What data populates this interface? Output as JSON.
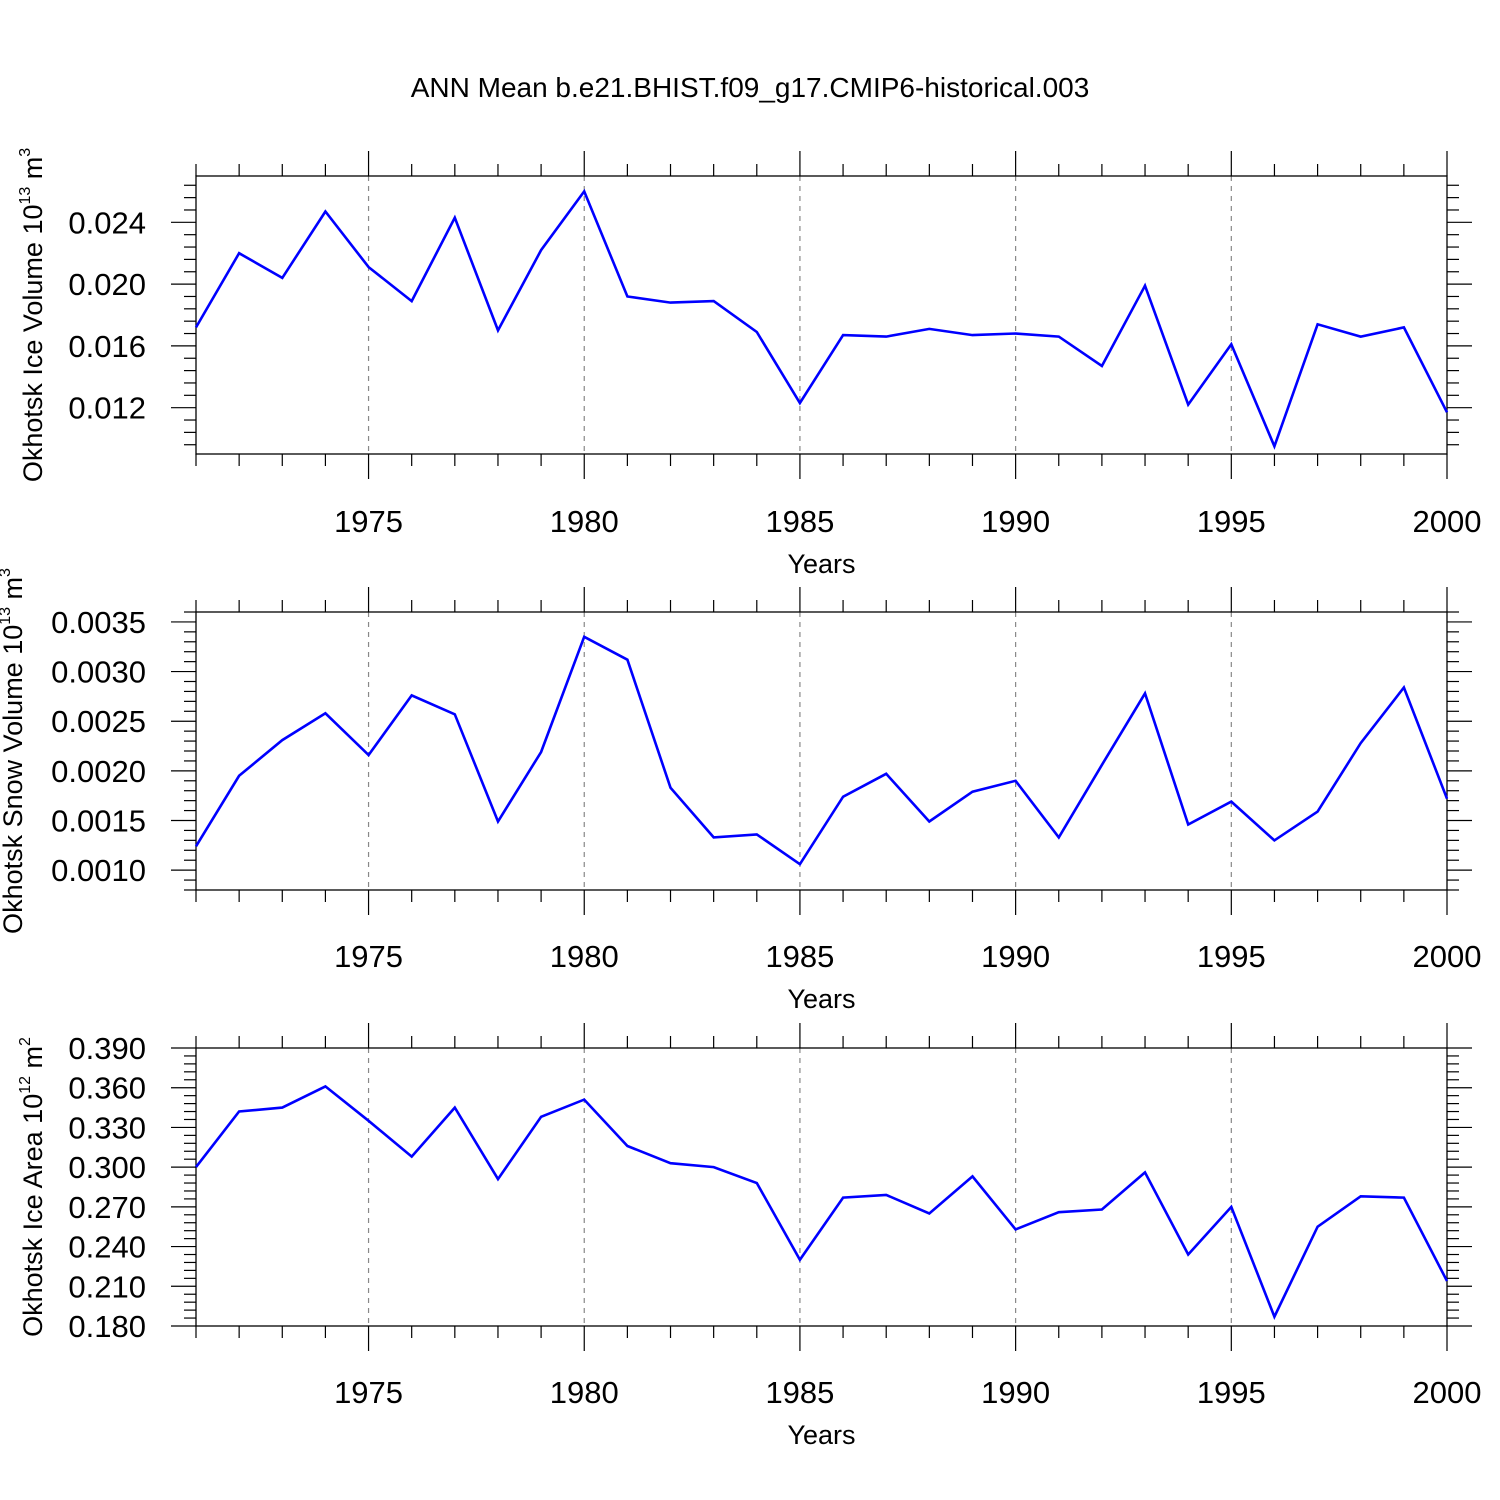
{
  "title": "ANN Mean b.e21.BHIST.f09_g17.CMIP6-historical.003",
  "chart_data": [
    {
      "type": "line",
      "ylabel": "Okhotsk Ice Volume 10",
      "ylabel_exp": "13",
      "ylabel_unit": " m",
      "ylabel_unit_exp": "3",
      "xlabel": "Years",
      "xlim": [
        1971,
        2000
      ],
      "ylim": [
        0.009,
        0.027
      ],
      "yticks": [
        0.012,
        0.016,
        0.02,
        0.024
      ],
      "ytick_labels": [
        "0.012",
        "0.016",
        "0.020",
        "0.024"
      ],
      "xticks": [
        1975,
        1980,
        1985,
        1990,
        1995,
        2000
      ],
      "xtick_labels": [
        "1975",
        "1980",
        "1985",
        "1990",
        "1995",
        "2000"
      ],
      "color": "#0000ff",
      "x": [
        1971,
        1972,
        1973,
        1974,
        1975,
        1976,
        1977,
        1978,
        1979,
        1980,
        1981,
        1982,
        1983,
        1984,
        1985,
        1986,
        1987,
        1988,
        1989,
        1990,
        1991,
        1992,
        1993,
        1994,
        1995,
        1996,
        1997,
        1998,
        1999,
        2000
      ],
      "values": [
        0.0172,
        0.022,
        0.0204,
        0.0247,
        0.0211,
        0.0189,
        0.0243,
        0.017,
        0.0222,
        0.026,
        0.0192,
        0.0188,
        0.0189,
        0.0169,
        0.0123,
        0.0167,
        0.0166,
        0.0171,
        0.0167,
        0.0168,
        0.0166,
        0.0147,
        0.0199,
        0.0122,
        0.0161,
        0.0095,
        0.0174,
        0.0166,
        0.0172,
        0.0117
      ]
    },
    {
      "type": "line",
      "ylabel": "Okhotsk Snow Volume 10",
      "ylabel_exp": "13",
      "ylabel_unit": " m",
      "ylabel_unit_exp": "3",
      "xlabel": "Years",
      "xlim": [
        1971,
        2000
      ],
      "ylim": [
        0.0008,
        0.0036
      ],
      "yticks": [
        0.001,
        0.0015,
        0.002,
        0.0025,
        0.003,
        0.0035
      ],
      "ytick_labels": [
        "0.0010",
        "0.0015",
        "0.0020",
        "0.0025",
        "0.0030",
        "0.0035"
      ],
      "xticks": [
        1975,
        1980,
        1985,
        1990,
        1995,
        2000
      ],
      "xtick_labels": [
        "1975",
        "1980",
        "1985",
        "1990",
        "1995",
        "2000"
      ],
      "color": "#0000ff",
      "x": [
        1971,
        1972,
        1973,
        1974,
        1975,
        1976,
        1977,
        1978,
        1979,
        1980,
        1981,
        1982,
        1983,
        1984,
        1985,
        1986,
        1987,
        1988,
        1989,
        1990,
        1991,
        1992,
        1993,
        1994,
        1995,
        1996,
        1997,
        1998,
        1999,
        2000
      ],
      "values": [
        0.00124,
        0.00195,
        0.00231,
        0.00258,
        0.00216,
        0.00276,
        0.00257,
        0.00149,
        0.00219,
        0.00335,
        0.00312,
        0.00183,
        0.00133,
        0.00136,
        0.00106,
        0.00174,
        0.00197,
        0.00149,
        0.00179,
        0.0019,
        0.00133,
        0.00206,
        0.00278,
        0.00146,
        0.00169,
        0.0013,
        0.00159,
        0.00228,
        0.00284,
        0.00172
      ]
    },
    {
      "type": "line",
      "ylabel": "Okhotsk Ice Area 10",
      "ylabel_exp": "12",
      "ylabel_unit": " m",
      "ylabel_unit_exp": "2",
      "xlabel": "Years",
      "xlim": [
        1971,
        2000
      ],
      "ylim": [
        0.18,
        0.39
      ],
      "yticks": [
        0.18,
        0.21,
        0.24,
        0.27,
        0.3,
        0.33,
        0.36,
        0.39
      ],
      "ytick_labels": [
        "0.180",
        "0.210",
        "0.240",
        "0.270",
        "0.300",
        "0.330",
        "0.360",
        "0.390"
      ],
      "xticks": [
        1975,
        1980,
        1985,
        1990,
        1995,
        2000
      ],
      "xtick_labels": [
        "1975",
        "1980",
        "1985",
        "1990",
        "1995",
        "2000"
      ],
      "color": "#0000ff",
      "x": [
        1971,
        1972,
        1973,
        1974,
        1975,
        1976,
        1977,
        1978,
        1979,
        1980,
        1981,
        1982,
        1983,
        1984,
        1985,
        1986,
        1987,
        1988,
        1989,
        1990,
        1991,
        1992,
        1993,
        1994,
        1995,
        1996,
        1997,
        1998,
        1999,
        2000
      ],
      "values": [
        0.3,
        0.342,
        0.345,
        0.361,
        0.335,
        0.308,
        0.345,
        0.291,
        0.338,
        0.351,
        0.316,
        0.303,
        0.3,
        0.288,
        0.23,
        0.277,
        0.279,
        0.265,
        0.293,
        0.253,
        0.266,
        0.268,
        0.296,
        0.234,
        0.27,
        0.187,
        0.255,
        0.278,
        0.277,
        0.214
      ]
    }
  ]
}
